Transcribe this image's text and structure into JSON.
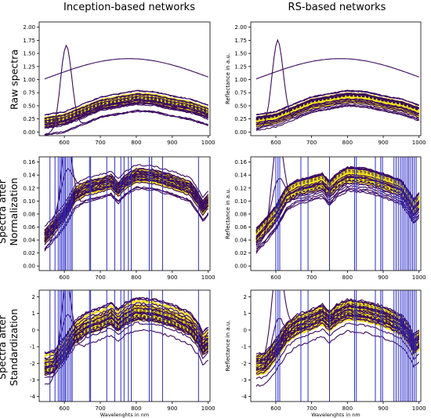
{
  "column_titles": [
    "Inception-based networks",
    "RS-based networks"
  ],
  "row_titles": [
    "Raw spectra",
    "Spectra after Normalization",
    "Spectra after Standardization"
  ],
  "colors": {
    "dark_spectra": "#3b0a5e",
    "light_spectra": "#f6e11f",
    "band_lines": "#2d2dcc",
    "dashed": "#2b1b4a",
    "axes": "#000000"
  },
  "chart_data": [
    {
      "type": "line",
      "panel": "inception-raw",
      "title": "",
      "xlabel": "",
      "ylabel": "",
      "xlim": [
        530,
        1005
      ],
      "ylim": [
        -0.07,
        2.1
      ],
      "xticks": [
        600,
        700,
        800,
        900,
        1000
      ],
      "yticks": [
        0.0,
        0.25,
        0.5,
        0.75,
        1.0,
        1.25,
        1.5,
        1.75,
        2.0
      ],
      "ytick_labels": [
        "0.00",
        "0.25",
        "0.50",
        "0.75",
        "1.00",
        "1.25",
        "1.50",
        "1.75",
        "2.00"
      ],
      "base": [
        [
          545,
          0.2
        ],
        [
          600,
          0.26
        ],
        [
          650,
          0.4
        ],
        [
          700,
          0.54
        ],
        [
          750,
          0.6
        ],
        [
          800,
          0.66
        ],
        [
          850,
          0.64
        ],
        [
          900,
          0.56
        ],
        [
          950,
          0.5
        ],
        [
          985,
          0.42
        ],
        [
          1000,
          0.38
        ]
      ],
      "band_positions_nm": []
    },
    {
      "type": "line",
      "panel": "rs-raw",
      "title": "",
      "xlabel": "",
      "ylabel": "Reflectance in a.u.",
      "xlim": [
        530,
        1005
      ],
      "ylim": [
        -0.07,
        2.1
      ],
      "xticks": [
        600,
        700,
        800,
        900,
        1000
      ],
      "yticks": [
        0.0,
        0.25,
        0.5,
        0.75,
        1.0,
        1.25,
        1.5,
        1.75,
        2.0
      ],
      "ytick_labels": [
        "0.00",
        "0.25",
        "0.50",
        "0.75",
        "1.00",
        "1.25",
        "1.50",
        "1.75",
        "2.00"
      ],
      "base": [
        [
          545,
          0.2
        ],
        [
          600,
          0.26
        ],
        [
          650,
          0.4
        ],
        [
          700,
          0.54
        ],
        [
          750,
          0.6
        ],
        [
          800,
          0.66
        ],
        [
          850,
          0.64
        ],
        [
          900,
          0.56
        ],
        [
          950,
          0.5
        ],
        [
          985,
          0.42
        ],
        [
          1000,
          0.38
        ]
      ],
      "band_positions_nm": []
    },
    {
      "type": "line",
      "panel": "inception-norm",
      "title": "",
      "xlabel": "",
      "ylabel": "",
      "xlim": [
        530,
        1005
      ],
      "ylim": [
        -0.007,
        0.168
      ],
      "xticks": [
        600,
        700,
        800,
        900,
        1000
      ],
      "yticks": [
        0.0,
        0.02,
        0.04,
        0.06,
        0.08,
        0.1,
        0.12,
        0.14,
        0.16
      ],
      "ytick_labels": [
        "0.00",
        "0.02",
        "0.04",
        "0.06",
        "0.08",
        "0.10",
        "0.12",
        "0.14",
        "0.16"
      ],
      "base": [
        [
          545,
          0.045
        ],
        [
          570,
          0.06
        ],
        [
          600,
          0.08
        ],
        [
          630,
          0.11
        ],
        [
          660,
          0.12
        ],
        [
          700,
          0.125
        ],
        [
          730,
          0.13
        ],
        [
          750,
          0.118
        ],
        [
          770,
          0.13
        ],
        [
          800,
          0.14
        ],
        [
          850,
          0.138
        ],
        [
          900,
          0.13
        ],
        [
          950,
          0.12
        ],
        [
          975,
          0.1
        ],
        [
          985,
          0.09
        ],
        [
          1000,
          0.1
        ]
      ],
      "band_positions_nm": [
        560,
        574,
        583,
        588,
        592,
        596,
        600,
        603,
        608,
        613,
        618,
        622,
        670,
        673,
        718,
        740,
        757,
        766,
        778,
        786,
        836,
        843,
        873,
        973
      ]
    },
    {
      "type": "line",
      "panel": "rs-norm",
      "title": "",
      "xlabel": "",
      "ylabel": "Reflectance in a.u.",
      "xlim": [
        530,
        1005
      ],
      "ylim": [
        -0.007,
        0.168
      ],
      "xticks": [
        600,
        700,
        800,
        900,
        1000
      ],
      "yticks": [
        0.0,
        0.02,
        0.04,
        0.06,
        0.08,
        0.1,
        0.12,
        0.14,
        0.16
      ],
      "ytick_labels": [
        "0.00",
        "0.02",
        "0.04",
        "0.06",
        "0.08",
        "0.10",
        "0.12",
        "0.14",
        "0.16"
      ],
      "base": [
        [
          545,
          0.045
        ],
        [
          570,
          0.06
        ],
        [
          600,
          0.08
        ],
        [
          630,
          0.11
        ],
        [
          660,
          0.12
        ],
        [
          700,
          0.125
        ],
        [
          730,
          0.13
        ],
        [
          750,
          0.118
        ],
        [
          770,
          0.13
        ],
        [
          800,
          0.14
        ],
        [
          850,
          0.138
        ],
        [
          900,
          0.13
        ],
        [
          950,
          0.12
        ],
        [
          975,
          0.1
        ],
        [
          985,
          0.09
        ],
        [
          1000,
          0.1
        ]
      ],
      "band_positions_nm": [
        600,
        606,
        611,
        670,
        690,
        750,
        820,
        825,
        878,
        893,
        898,
        930,
        936,
        942,
        948,
        953,
        958,
        963,
        968,
        972,
        977,
        982,
        987,
        992
      ]
    },
    {
      "type": "line",
      "panel": "inception-std",
      "title": "",
      "xlabel": "",
      "ylabel": "",
      "xlim": [
        530,
        1005
      ],
      "ylim": [
        -4.3,
        2.4
      ],
      "xticks": [
        600,
        700,
        800,
        900,
        1000
      ],
      "yticks": [
        -4,
        -3,
        -2,
        -1,
        0,
        1,
        2
      ],
      "ytick_labels": [
        "-4",
        "-3",
        "-2",
        "-1",
        "0",
        "1",
        "2"
      ],
      "base": [
        [
          545,
          -2.1
        ],
        [
          570,
          -2.0
        ],
        [
          600,
          -1.2
        ],
        [
          630,
          -0.2
        ],
        [
          660,
          0.3
        ],
        [
          700,
          0.6
        ],
        [
          730,
          0.9
        ],
        [
          750,
          0.5
        ],
        [
          770,
          0.9
        ],
        [
          800,
          1.2
        ],
        [
          850,
          1.1
        ],
        [
          900,
          0.8
        ],
        [
          950,
          0.3
        ],
        [
          975,
          -0.4
        ],
        [
          985,
          -0.9
        ],
        [
          1000,
          -0.6
        ]
      ],
      "band_positions_nm": [
        560,
        574,
        583,
        588,
        592,
        596,
        600,
        603,
        608,
        613,
        618,
        622,
        670,
        673,
        718,
        740,
        757,
        766,
        778,
        786,
        836,
        843,
        873,
        973
      ]
    },
    {
      "type": "line",
      "panel": "rs-std",
      "title": "",
      "xlabel": "Wavelenghts in nm",
      "ylabel": "Reflectance in a.u.",
      "xlim": [
        530,
        1005
      ],
      "ylim": [
        -4.3,
        2.4
      ],
      "xticks": [
        600,
        700,
        800,
        900,
        1000
      ],
      "yticks": [
        -4,
        -3,
        -2,
        -1,
        0,
        1,
        2
      ],
      "ytick_labels": [
        "-4",
        "-3",
        "-2",
        "-1",
        "0",
        "1",
        "2"
      ],
      "base": [
        [
          545,
          -2.1
        ],
        [
          570,
          -2.0
        ],
        [
          600,
          -1.2
        ],
        [
          630,
          -0.2
        ],
        [
          660,
          0.3
        ],
        [
          700,
          0.6
        ],
        [
          730,
          0.9
        ],
        [
          750,
          0.5
        ],
        [
          770,
          0.9
        ],
        [
          800,
          1.2
        ],
        [
          850,
          1.1
        ],
        [
          900,
          0.8
        ],
        [
          950,
          0.3
        ],
        [
          975,
          -0.4
        ],
        [
          985,
          -0.9
        ],
        [
          1000,
          -0.6
        ]
      ],
      "band_positions_nm": [
        600,
        606,
        611,
        670,
        690,
        750,
        820,
        825,
        878,
        893,
        898,
        930,
        936,
        942,
        948,
        953,
        958,
        963,
        968,
        972,
        977,
        982,
        987,
        992
      ]
    }
  ],
  "bottom_xlabel_left": "Wavelenghts in nm"
}
